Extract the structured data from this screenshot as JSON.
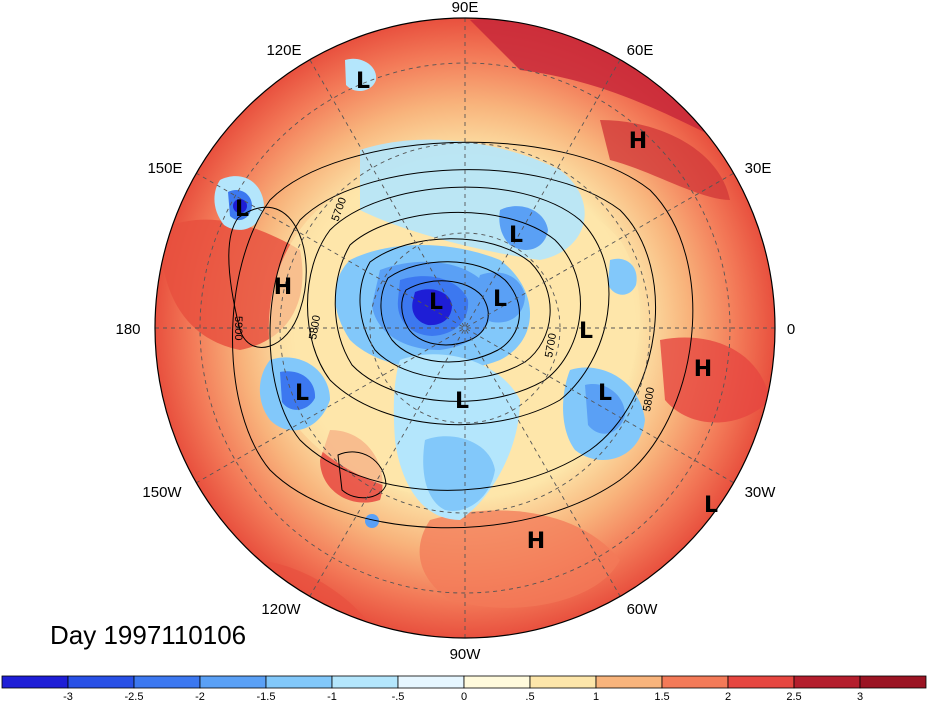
{
  "title": "Day 1997110106",
  "longitude_labels": [
    "90E",
    "120E",
    "60E",
    "150E",
    "30E",
    "180",
    "0",
    "150W",
    "30W",
    "120W",
    "60W",
    "90W"
  ],
  "contour_labels": [
    "5700",
    "5800",
    "5900",
    "5700",
    "5800"
  ],
  "pressure_centers": [
    {
      "type": "L"
    },
    {
      "type": "H"
    },
    {
      "type": "L"
    },
    {
      "type": "L"
    },
    {
      "type": "H"
    },
    {
      "type": "L"
    },
    {
      "type": "L"
    },
    {
      "type": "L"
    },
    {
      "type": "L"
    },
    {
      "type": "H"
    },
    {
      "type": "L"
    },
    {
      "type": "L"
    },
    {
      "type": "H"
    },
    {
      "type": "L"
    }
  ],
  "colorbar": {
    "ticks": [
      "-3",
      "-2.5",
      "-2",
      "-1.5",
      "-1",
      "-.5",
      "0",
      ".5",
      "1",
      "1.5",
      "2",
      "2.5",
      "3"
    ],
    "colors": [
      "#1e1ed6",
      "#2850e6",
      "#3c78f0",
      "#5aa0f5",
      "#82c8fa",
      "#b4e6fc",
      "#e6f6ff",
      "#fffadc",
      "#fde6aa",
      "#f8b47c",
      "#f37a58",
      "#e64640",
      "#b41e2d",
      "#9b1423"
    ]
  },
  "colors": {
    "background": "#ffffff",
    "map_warm": "#f07a5a",
    "map_cold": "#4b8cf0",
    "grid": "#555555"
  }
}
